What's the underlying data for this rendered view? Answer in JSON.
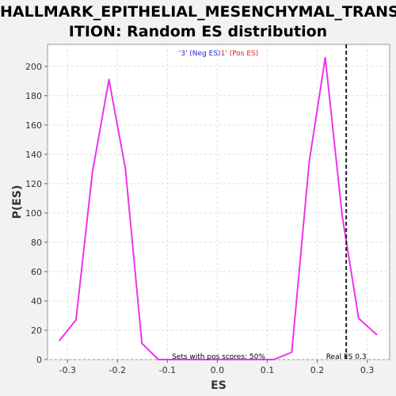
{
  "chart_data": {
    "type": "line",
    "title_lines": [
      "HALLMARK_EPITHELIAL_MESENCHYMAL_TRANS",
      "ITION: Random ES distribution"
    ],
    "xlabel": "ES",
    "ylabel": "P(ES)",
    "xlim": [
      -0.34,
      0.345
    ],
    "ylim": [
      0,
      215
    ],
    "xticks": [
      -0.3,
      -0.2,
      -0.1,
      0.0,
      0.1,
      0.2,
      0.3
    ],
    "xtick_labels": [
      "-0.3",
      "-0.2",
      "-0.1",
      "0.0",
      "0.1",
      "0.2",
      "0.3"
    ],
    "yticks": [
      0,
      20,
      40,
      60,
      80,
      100,
      120,
      140,
      160,
      180,
      200
    ],
    "ytick_labels": [
      "0",
      "20",
      "40",
      "60",
      "80",
      "100",
      "120",
      "140",
      "160",
      "180",
      "200"
    ],
    "grid": true,
    "legend": {
      "placement": "top-center",
      "neg_text": "'3' (Neg ES)",
      "pos_text": "1' (Pos ES)",
      "neg_color": "#2222dd",
      "pos_color": "#dd2222"
    },
    "series": [
      {
        "color": "#ee33ee",
        "x": [
          -0.316,
          -0.283,
          -0.25,
          -0.217,
          -0.184,
          -0.151,
          -0.118,
          -0.085,
          -0.052,
          -0.019,
          0.014,
          0.047,
          0.08,
          0.113,
          0.149,
          0.184,
          0.216,
          0.25,
          0.283,
          0.319
        ],
        "y": [
          13,
          27,
          128,
          191,
          130,
          11,
          0,
          0,
          0,
          0,
          0,
          0,
          0,
          0,
          5,
          135,
          206,
          98,
          28,
          17
        ]
      }
    ],
    "real_es": {
      "x": 0.258,
      "label": "Real ES 0.3",
      "color": "#222222"
    },
    "pos_scores_note": "Sets with pos scores: 50%"
  }
}
